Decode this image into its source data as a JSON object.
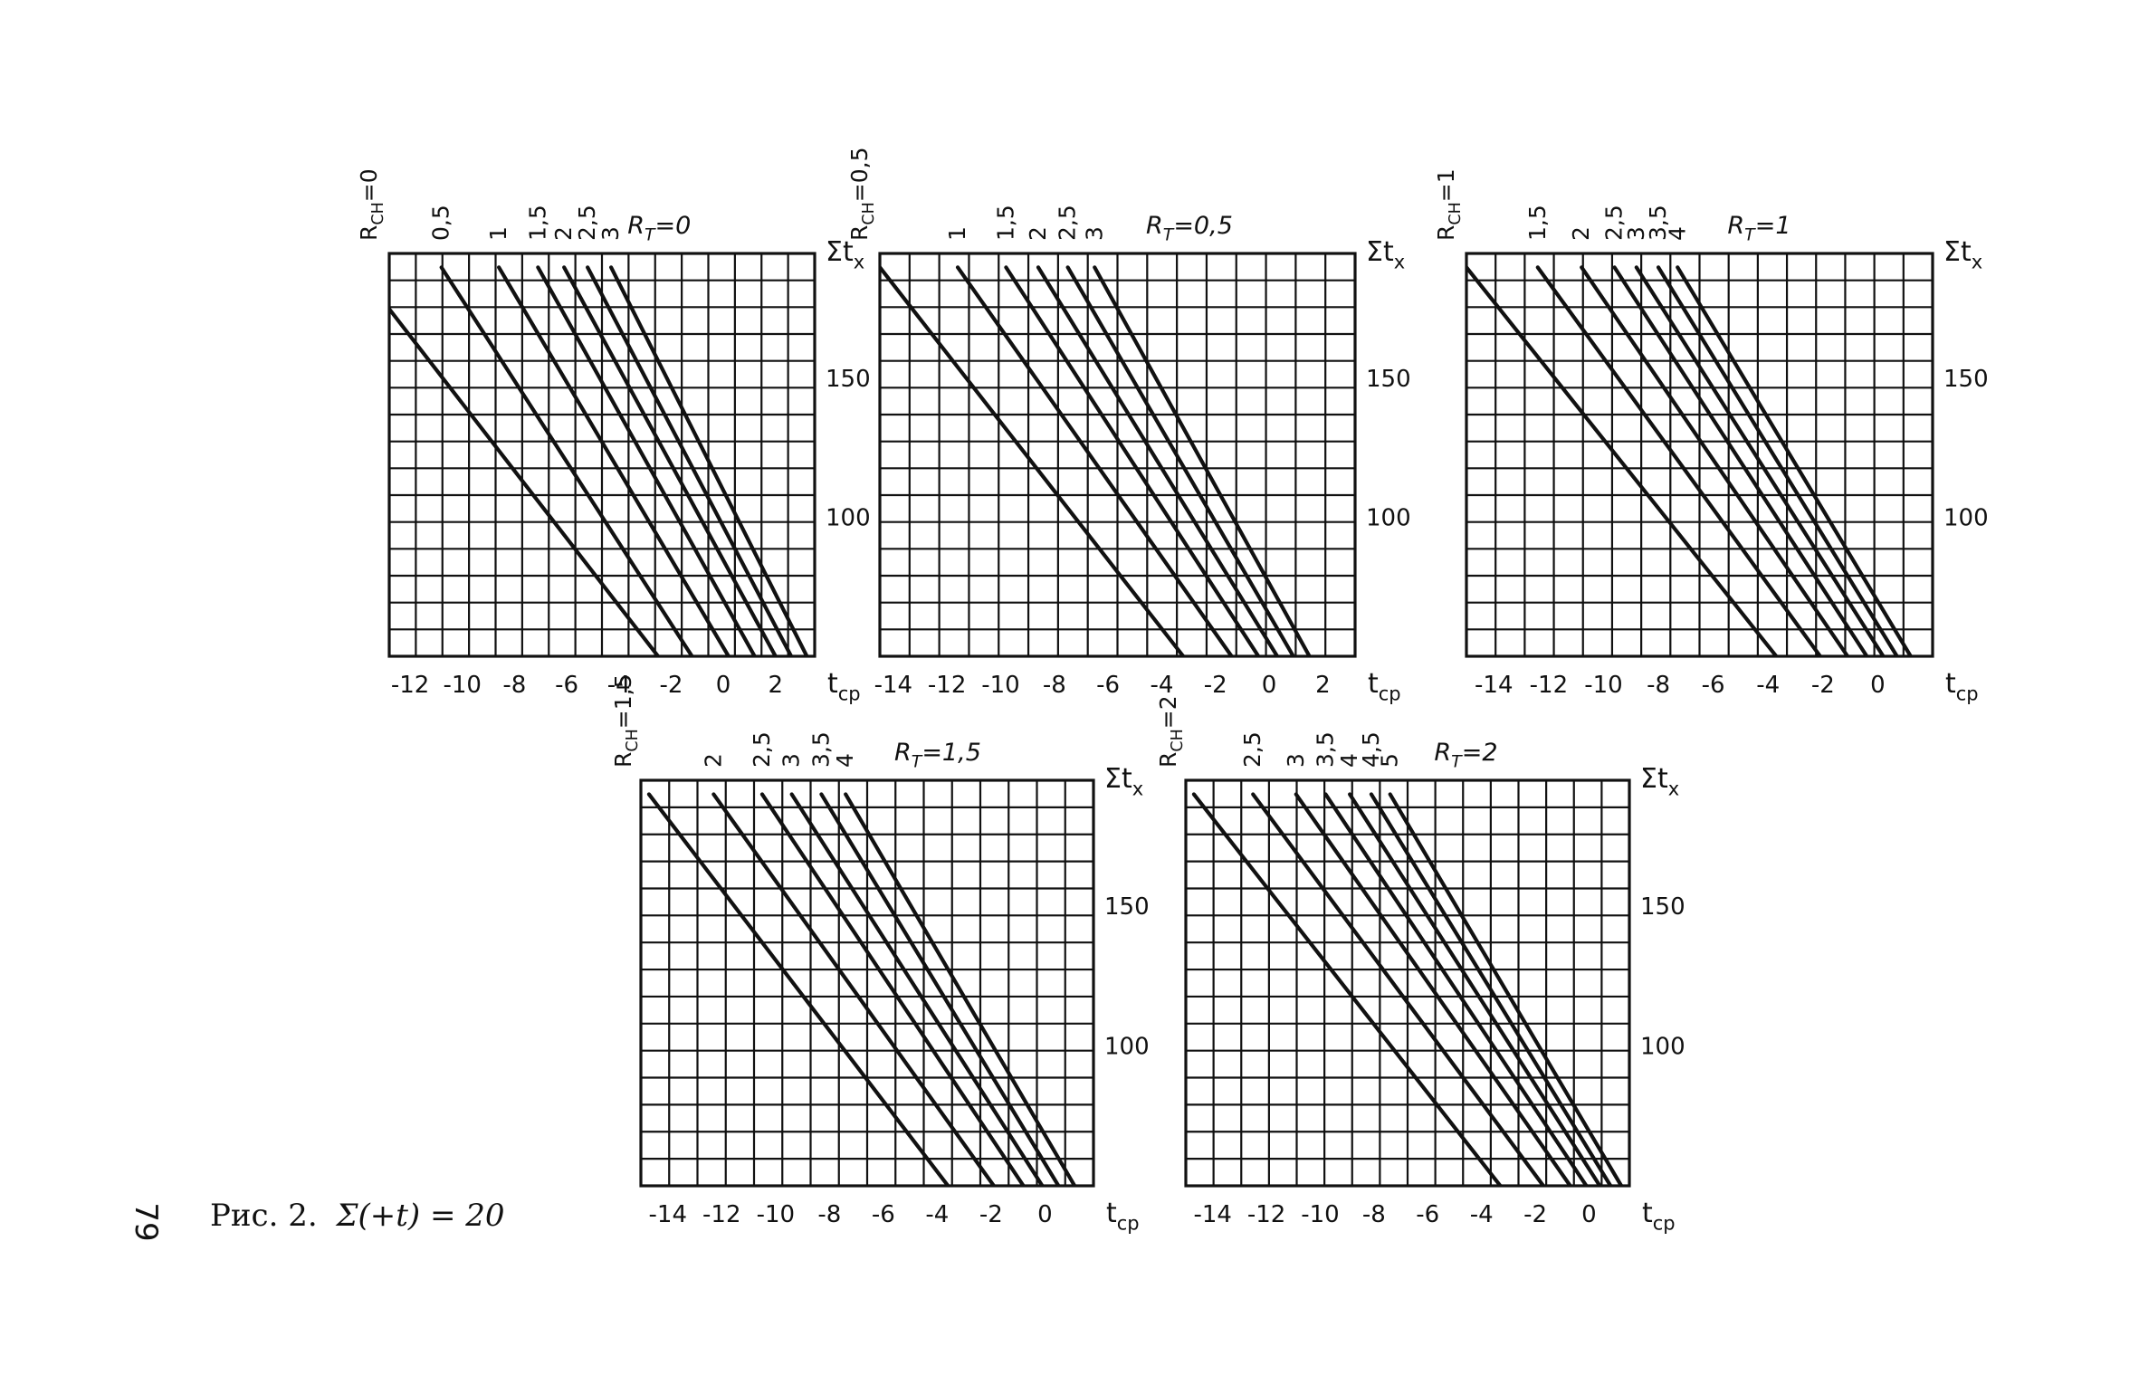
{
  "page_number": "79",
  "caption": {
    "prefix": "Рис. 2.",
    "formula": "Σ(+t) = 20"
  },
  "colors": {
    "ink": "#111111",
    "paper": "#ffffff"
  },
  "chart_data": [
    {
      "type": "line",
      "title": "R_T=0",
      "title_main": "R",
      "title_sub": "T",
      "title_rest": "=0",
      "first_curve_label": {
        "main": "R",
        "sub": "CH",
        "rest": "=0"
      },
      "xlabel": {
        "main": "t",
        "sub": "cp"
      },
      "ylabel": {
        "main": "Σt",
        "sub": "x"
      },
      "xlim": [
        -12.8,
        3.5
      ],
      "ylim": [
        50,
        195
      ],
      "x_ticks": [
        -12,
        -10,
        -8,
        -6,
        -4,
        -2,
        0,
        2
      ],
      "y_ticks": [
        100,
        150
      ],
      "grid": true,
      "series": [
        {
          "name": "0",
          "points": [
            [
              -12.8,
              175
            ],
            [
              -2.5,
              50
            ]
          ]
        },
        {
          "name": "0,5",
          "points": [
            [
              -10.8,
              190
            ],
            [
              -1.2,
              50
            ]
          ]
        },
        {
          "name": "1",
          "points": [
            [
              -8.6,
              190
            ],
            [
              0.2,
              50
            ]
          ]
        },
        {
          "name": "1,5",
          "points": [
            [
              -7.1,
              190
            ],
            [
              1.2,
              50
            ]
          ]
        },
        {
          "name": "2",
          "points": [
            [
              -6.1,
              190
            ],
            [
              2.0,
              50
            ]
          ]
        },
        {
          "name": "2,5",
          "points": [
            [
              -5.2,
              190
            ],
            [
              2.6,
              50
            ]
          ]
        },
        {
          "name": "3",
          "points": [
            [
              -4.3,
              190
            ],
            [
              3.2,
              50
            ]
          ]
        }
      ]
    },
    {
      "type": "line",
      "title": "R_T=0,5",
      "title_main": "R",
      "title_sub": "T",
      "title_rest": "=0,5",
      "first_curve_label": {
        "main": "R",
        "sub": "CH",
        "rest": "=0,5"
      },
      "xlabel": {
        "main": "t",
        "sub": "cp"
      },
      "ylabel": {
        "main": "Σt",
        "sub": "x"
      },
      "xlim": [
        -14.5,
        3.2
      ],
      "ylim": [
        50,
        195
      ],
      "x_ticks": [
        -14,
        -12,
        -10,
        -8,
        -6,
        -4,
        -2,
        0,
        2
      ],
      "y_ticks": [
        100,
        150
      ],
      "grid": true,
      "series": [
        {
          "name": "0,5",
          "points": [
            [
              -14.5,
              190
            ],
            [
              -3.2,
              50
            ]
          ]
        },
        {
          "name": "1",
          "points": [
            [
              -11.6,
              190
            ],
            [
              -1.4,
              50
            ]
          ]
        },
        {
          "name": "1,5",
          "points": [
            [
              -9.8,
              190
            ],
            [
              -0.4,
              50
            ]
          ]
        },
        {
          "name": "2",
          "points": [
            [
              -8.6,
              190
            ],
            [
              0.3,
              50
            ]
          ]
        },
        {
          "name": "2,5",
          "points": [
            [
              -7.5,
              190
            ],
            [
              0.9,
              50
            ]
          ]
        },
        {
          "name": "3",
          "points": [
            [
              -6.5,
              190
            ],
            [
              1.5,
              50
            ]
          ]
        }
      ]
    },
    {
      "type": "line",
      "title": "R_T=1",
      "title_main": "R",
      "title_sub": "T",
      "title_rest": "=1",
      "first_curve_label": {
        "main": "R",
        "sub": "CH",
        "rest": "=1"
      },
      "xlabel": {
        "main": "t",
        "sub": "cp"
      },
      "ylabel": {
        "main": "Σt",
        "sub": "x"
      },
      "xlim": [
        -15.0,
        2.0
      ],
      "ylim": [
        50,
        195
      ],
      "x_ticks": [
        -14,
        -12,
        -10,
        -8,
        -6,
        -4,
        -2,
        0
      ],
      "y_ticks": [
        100,
        150
      ],
      "grid": true,
      "series": [
        {
          "name": "1",
          "points": [
            [
              -15.0,
              190
            ],
            [
              -3.7,
              50
            ]
          ]
        },
        {
          "name": "1,5",
          "points": [
            [
              -12.4,
              190
            ],
            [
              -2.1,
              50
            ]
          ]
        },
        {
          "name": "2",
          "points": [
            [
              -10.8,
              190
            ],
            [
              -1.1,
              50
            ]
          ]
        },
        {
          "name": "2,5",
          "points": [
            [
              -9.6,
              190
            ],
            [
              -0.4,
              50
            ]
          ]
        },
        {
          "name": "3",
          "points": [
            [
              -8.8,
              190
            ],
            [
              0.2,
              50
            ]
          ]
        },
        {
          "name": "3,5",
          "points": [
            [
              -8.0,
              190
            ],
            [
              0.7,
              50
            ]
          ]
        },
        {
          "name": "4",
          "points": [
            [
              -7.3,
              190
            ],
            [
              1.2,
              50
            ]
          ]
        }
      ]
    },
    {
      "type": "line",
      "title": "R_T=1,5",
      "title_main": "R",
      "title_sub": "T",
      "title_rest": "=1,5",
      "first_curve_label": {
        "main": "R",
        "sub": "CH",
        "rest": "=1,5"
      },
      "xlabel": {
        "main": "t",
        "sub": "cp"
      },
      "ylabel": {
        "main": "Σt",
        "sub": "x"
      },
      "xlim": [
        -15.0,
        1.8
      ],
      "ylim": [
        50,
        195
      ],
      "x_ticks": [
        -14,
        -12,
        -10,
        -8,
        -6,
        -4,
        -2,
        0
      ],
      "y_ticks": [
        100,
        150
      ],
      "grid": true,
      "series": [
        {
          "name": "1,5",
          "points": [
            [
              -14.7,
              190
            ],
            [
              -3.6,
              50
            ]
          ]
        },
        {
          "name": "2",
          "points": [
            [
              -12.3,
              190
            ],
            [
              -1.9,
              50
            ]
          ]
        },
        {
          "name": "2,5",
          "points": [
            [
              -10.5,
              190
            ],
            [
              -0.8,
              50
            ]
          ]
        },
        {
          "name": "3",
          "points": [
            [
              -9.4,
              190
            ],
            [
              -0.1,
              50
            ]
          ]
        },
        {
          "name": "3,5",
          "points": [
            [
              -8.3,
              190
            ],
            [
              0.5,
              50
            ]
          ]
        },
        {
          "name": "4",
          "points": [
            [
              -7.4,
              190
            ],
            [
              1.1,
              50
            ]
          ]
        }
      ]
    },
    {
      "type": "line",
      "title": "R_T=2",
      "title_main": "R",
      "title_sub": "T",
      "title_rest": "=2",
      "first_curve_label": {
        "main": "R",
        "sub": "CH",
        "rest": "=2"
      },
      "xlabel": {
        "main": "t",
        "sub": "cp"
      },
      "ylabel": {
        "main": "Σt",
        "sub": "x"
      },
      "xlim": [
        -15.0,
        1.5
      ],
      "ylim": [
        50,
        195
      ],
      "x_ticks": [
        -14,
        -12,
        -10,
        -8,
        -6,
        -4,
        -2,
        0
      ],
      "y_ticks": [
        100,
        150
      ],
      "grid": true,
      "series": [
        {
          "name": "2",
          "points": [
            [
              -14.7,
              190
            ],
            [
              -3.3,
              50
            ]
          ]
        },
        {
          "name": "2,5",
          "points": [
            [
              -12.5,
              190
            ],
            [
              -1.7,
              50
            ]
          ]
        },
        {
          "name": "3",
          "points": [
            [
              -10.9,
              190
            ],
            [
              -0.7,
              50
            ]
          ]
        },
        {
          "name": "3,5",
          "points": [
            [
              -9.8,
              190
            ],
            [
              -0.1,
              50
            ]
          ]
        },
        {
          "name": "4",
          "points": [
            [
              -8.9,
              190
            ],
            [
              0.4,
              50
            ]
          ]
        },
        {
          "name": "4,5",
          "points": [
            [
              -8.1,
              190
            ],
            [
              0.8,
              50
            ]
          ]
        },
        {
          "name": "5",
          "points": [
            [
              -7.4,
              190
            ],
            [
              1.2,
              50
            ]
          ]
        }
      ]
    }
  ]
}
